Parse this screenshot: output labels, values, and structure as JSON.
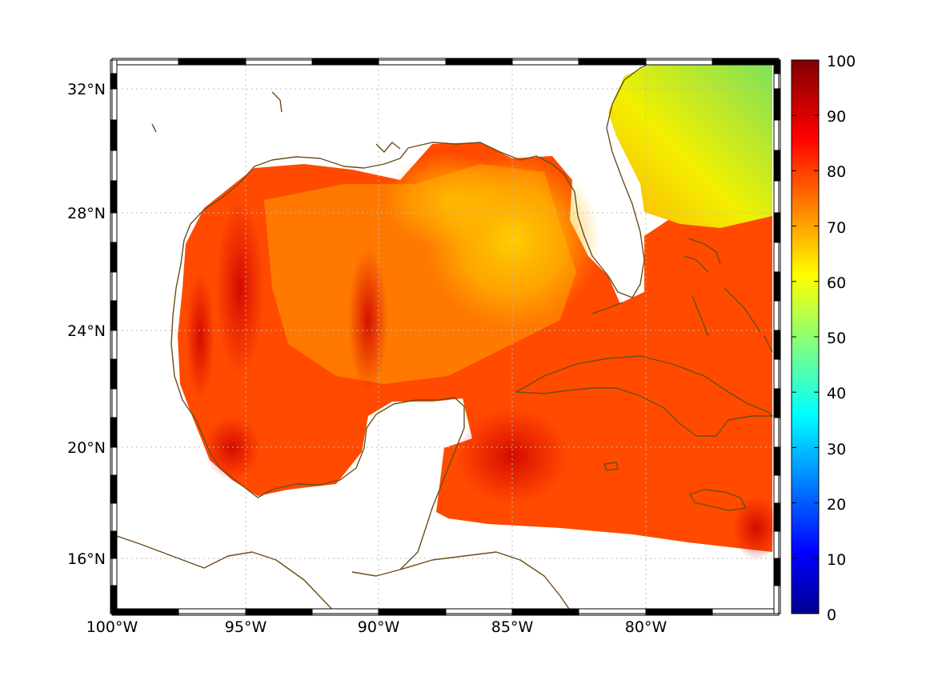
{
  "map": {
    "lon_labels": [
      "100°W",
      "95°W",
      "90°W",
      "85°W",
      "80°W"
    ],
    "lat_labels": [
      "32°N",
      "28°N",
      "24°N",
      "20°N",
      "16°N"
    ],
    "lon_range": [
      -100,
      -75
    ],
    "lat_range": [
      14,
      33
    ],
    "land_color": "#ffffff",
    "coastline_color": "#6b4e16",
    "grid": "dotted",
    "frame": "black-white checkered"
  },
  "colorbar": {
    "ticks": [
      "100",
      "90",
      "80",
      "70",
      "60",
      "50",
      "40",
      "30",
      "20",
      "10",
      "0"
    ],
    "range": [
      0,
      100
    ],
    "colormap": "jet"
  },
  "field": {
    "typical_value": 82,
    "northeast_gulf_value": 70,
    "atlantic_northeast_value": 58,
    "high_spots_value": 92
  }
}
